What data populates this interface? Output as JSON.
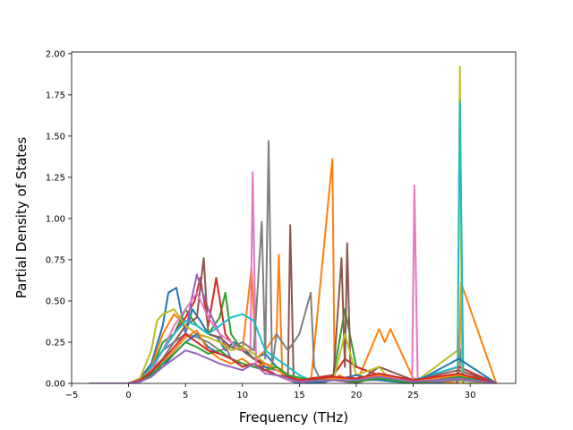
{
  "chart_data": {
    "type": "line",
    "title": "",
    "xlabel": "Frequency (THz)",
    "ylabel": "Partial Density of States",
    "xlim": [
      -5.0,
      34.0
    ],
    "ylim": [
      0.0,
      2.01
    ],
    "x_ticks": [
      -5,
      0,
      5,
      10,
      15,
      20,
      25,
      30
    ],
    "y_ticks": [
      0.0,
      0.25,
      0.5,
      0.75,
      1.0,
      1.25,
      1.5,
      1.75,
      2.0
    ],
    "x_tick_labels": [
      "−5",
      "0",
      "5",
      "10",
      "15",
      "20",
      "25",
      "30"
    ],
    "y_tick_labels": [
      "0.00",
      "0.25",
      "0.50",
      "0.75",
      "1.00",
      "1.25",
      "1.50",
      "1.75",
      "2.00"
    ],
    "grid": false,
    "legend": "none",
    "series": [
      {
        "color": "#1f77b4",
        "x": [
          -3.5,
          0,
          1,
          2,
          3,
          3.5,
          4.2,
          5,
          5.6,
          6.3,
          7,
          7.8,
          8.5,
          9.2,
          10,
          11,
          12,
          13,
          13.5,
          14,
          15,
          18,
          20,
          22,
          23,
          25,
          28.8,
          29.1,
          29.4,
          32.3
        ],
        "y": [
          0,
          0,
          0.03,
          0.12,
          0.35,
          0.55,
          0.58,
          0.3,
          0.45,
          0.38,
          0.3,
          0.28,
          0.2,
          0.25,
          0.22,
          0.15,
          0.18,
          0.1,
          0.08,
          0.02,
          0,
          0.02,
          0.01,
          0.05,
          0.03,
          0.01,
          0,
          0.21,
          0,
          0
        ]
      },
      {
        "color": "#ff7f0e",
        "x": [
          -3.5,
          0,
          1,
          2,
          3,
          4,
          5,
          6,
          7,
          8,
          9,
          10,
          10.8,
          11.2,
          12,
          13,
          13.2,
          13.5,
          14,
          16,
          17.9,
          18.1,
          18.5,
          20,
          22,
          22.5,
          23,
          25,
          29,
          29.2,
          32.3
        ],
        "y": [
          0,
          0,
          0.02,
          0.1,
          0.3,
          0.42,
          0.35,
          0.3,
          0.28,
          0.25,
          0.22,
          0.2,
          0.7,
          0.15,
          0.2,
          0.3,
          0.78,
          0.05,
          0.02,
          0,
          1.36,
          0.02,
          0.05,
          0,
          0.33,
          0.25,
          0.33,
          0.03,
          0,
          0.61,
          0
        ]
      },
      {
        "color": "#2ca02c",
        "x": [
          -3.5,
          0,
          1,
          2,
          3,
          4,
          5,
          6,
          7,
          8,
          8.5,
          9,
          10,
          11,
          12,
          13,
          14,
          15,
          18,
          19,
          20,
          22,
          25,
          29,
          32.3
        ],
        "y": [
          0,
          0,
          0.02,
          0.08,
          0.25,
          0.3,
          0.45,
          0.35,
          0.3,
          0.4,
          0.55,
          0.3,
          0.2,
          0.15,
          0.12,
          0.1,
          0.05,
          0.02,
          0.05,
          0.45,
          0.1,
          0.05,
          0.02,
          0.03,
          0
        ]
      },
      {
        "color": "#d62728",
        "x": [
          -3.5,
          0,
          1,
          2,
          3,
          4,
          5,
          5.8,
          6.3,
          7,
          7.7,
          8.5,
          9,
          10,
          11,
          12,
          13,
          14,
          15,
          18,
          19,
          20,
          22,
          25,
          29,
          32.3
        ],
        "y": [
          0,
          0,
          0.03,
          0.1,
          0.2,
          0.3,
          0.4,
          0.5,
          0.64,
          0.35,
          0.64,
          0.3,
          0.25,
          0.2,
          0.15,
          0.12,
          0.1,
          0.05,
          0.02,
          0.05,
          0.15,
          0.1,
          0.05,
          0.02,
          0.1,
          0
        ]
      },
      {
        "color": "#9467bd",
        "x": [
          -3.5,
          0,
          1,
          2,
          3,
          4,
          5,
          5.5,
          6,
          7,
          8,
          9,
          10,
          11,
          12,
          13,
          14,
          16,
          18,
          20,
          22,
          25,
          29,
          32.3
        ],
        "y": [
          0,
          0,
          0.02,
          0.1,
          0.2,
          0.25,
          0.3,
          0.5,
          0.66,
          0.45,
          0.3,
          0.15,
          0.12,
          0.1,
          0.08,
          0.1,
          0.05,
          0.02,
          0.03,
          0.02,
          0.02,
          0.01,
          0.05,
          0
        ]
      },
      {
        "color": "#8c564b",
        "x": [
          -3.5,
          0,
          1,
          2,
          3,
          4,
          5,
          6,
          6.6,
          7,
          8,
          9,
          10,
          11,
          12,
          13,
          14,
          14.2,
          14.5,
          16,
          18,
          18.7,
          19,
          19.2,
          19.5,
          20,
          22,
          25,
          29,
          32.3
        ],
        "y": [
          0,
          0,
          0.02,
          0.08,
          0.15,
          0.25,
          0.35,
          0.4,
          0.76,
          0.3,
          0.28,
          0.22,
          0.2,
          0.15,
          0.1,
          0.08,
          0.05,
          0.96,
          0.02,
          0,
          0.05,
          0.76,
          0.1,
          0.85,
          0.05,
          0,
          0.1,
          0.02,
          0.08,
          0
        ]
      },
      {
        "color": "#e377c2",
        "x": [
          -3.5,
          0,
          1,
          2,
          3,
          4,
          5,
          6,
          7,
          8,
          9,
          10,
          10.7,
          10.9,
          11.2,
          12,
          13,
          14,
          16,
          18,
          20,
          22,
          24.9,
          25.1,
          25.4,
          29,
          32.3
        ],
        "y": [
          0,
          0,
          0.02,
          0.08,
          0.2,
          0.35,
          0.45,
          0.55,
          0.4,
          0.3,
          0.25,
          0.2,
          0.2,
          1.28,
          0.1,
          0.1,
          0.05,
          0.02,
          0,
          0.02,
          0,
          0.05,
          0,
          1.2,
          0,
          0.05,
          0
        ]
      },
      {
        "color": "#7f7f7f",
        "x": [
          -3.5,
          0,
          1,
          2,
          3,
          4,
          5,
          6,
          7,
          8,
          9,
          10,
          11,
          11.7,
          12,
          12.3,
          12.6,
          13,
          14,
          15,
          16,
          16.3,
          17,
          18,
          20,
          22,
          25,
          29,
          32.3
        ],
        "y": [
          0,
          0,
          0.02,
          0.06,
          0.15,
          0.25,
          0.3,
          0.28,
          0.25,
          0.2,
          0.22,
          0.25,
          0.2,
          0.98,
          0.15,
          1.47,
          0.1,
          0.3,
          0.2,
          0.3,
          0.55,
          0.1,
          0,
          0.03,
          0,
          0.05,
          0,
          0.02,
          0
        ]
      },
      {
        "color": "#bcbd22",
        "x": [
          -3.5,
          0,
          1,
          2,
          2.5,
          3,
          4,
          5,
          6,
          7,
          8,
          9,
          10,
          11,
          12,
          13,
          14,
          16,
          18,
          19,
          20,
          22,
          23,
          25,
          28.9,
          29.1,
          29.3,
          32.3
        ],
        "y": [
          0,
          0,
          0.03,
          0.2,
          0.38,
          0.42,
          0.45,
          0.35,
          0.3,
          0.28,
          0.25,
          0.2,
          0.22,
          0.18,
          0.12,
          0.1,
          0.05,
          0,
          0.02,
          0.3,
          0.05,
          0.1,
          0.02,
          0,
          0.2,
          1.92,
          0,
          0
        ]
      },
      {
        "color": "#17becf",
        "x": [
          -3.5,
          0,
          1,
          2,
          3,
          4,
          5,
          6,
          7,
          8,
          9,
          10,
          11,
          12,
          13,
          14,
          15,
          16,
          18,
          20,
          22,
          25,
          28.9,
          29.1,
          29.4,
          32.3
        ],
        "y": [
          0,
          0,
          0.02,
          0.1,
          0.2,
          0.3,
          0.38,
          0.35,
          0.3,
          0.35,
          0.4,
          0.42,
          0.38,
          0.2,
          0.15,
          0.1,
          0.05,
          0.02,
          0.03,
          0.02,
          0.05,
          0.02,
          0.1,
          1.71,
          0.05,
          0
        ]
      },
      {
        "color": "#1f77b4",
        "x": [
          -3.5,
          0,
          1,
          2,
          3,
          4,
          5,
          6,
          7,
          8,
          9,
          10,
          11,
          12,
          13,
          14,
          15,
          16,
          18,
          20,
          22,
          25,
          29,
          32.3
        ],
        "y": [
          0,
          0,
          0.02,
          0.06,
          0.1,
          0.18,
          0.25,
          0.3,
          0.22,
          0.18,
          0.15,
          0.12,
          0.1,
          0.1,
          0.08,
          0.05,
          0.02,
          0,
          0.02,
          0.05,
          0.02,
          0,
          0.15,
          0
        ]
      },
      {
        "color": "#ff7f0e",
        "x": [
          -3.5,
          0,
          1,
          2,
          3,
          4,
          5,
          6,
          7,
          8,
          9,
          10,
          11,
          12,
          13,
          14,
          15,
          18,
          20,
          22,
          25,
          29,
          32.3
        ],
        "y": [
          0,
          0,
          0.02,
          0.08,
          0.12,
          0.2,
          0.28,
          0.32,
          0.2,
          0.15,
          0.12,
          0.15,
          0.1,
          0.12,
          0.08,
          0.05,
          0.02,
          0.03,
          0.02,
          0.05,
          0.01,
          0.05,
          0
        ]
      },
      {
        "color": "#2ca02c",
        "x": [
          -3.5,
          0,
          1,
          2,
          3,
          4,
          5,
          6,
          7,
          8,
          9,
          10,
          11,
          12,
          13,
          14,
          16,
          18,
          20,
          22,
          25,
          29,
          32.3
        ],
        "y": [
          0,
          0,
          0.01,
          0.05,
          0.12,
          0.18,
          0.25,
          0.22,
          0.18,
          0.2,
          0.15,
          0.12,
          0.1,
          0.08,
          0.1,
          0.05,
          0.02,
          0.02,
          0.01,
          0.03,
          0,
          0.04,
          0
        ]
      },
      {
        "color": "#d62728",
        "x": [
          -3.5,
          0,
          1,
          2,
          3,
          4,
          5,
          6,
          7,
          8,
          9,
          10,
          11,
          12,
          13,
          14,
          15,
          18,
          20,
          22,
          25,
          29,
          32.3
        ],
        "y": [
          0,
          0,
          0.02,
          0.07,
          0.14,
          0.22,
          0.3,
          0.25,
          0.2,
          0.18,
          0.15,
          0.1,
          0.12,
          0.08,
          0.05,
          0.04,
          0.02,
          0.04,
          0.03,
          0.06,
          0.02,
          0.06,
          0
        ]
      },
      {
        "color": "#9467bd",
        "x": [
          -3.5,
          0,
          1,
          2,
          3,
          4,
          5,
          6,
          7,
          8,
          9,
          10,
          11,
          12,
          13,
          14,
          15,
          18,
          20,
          22,
          25,
          29,
          32.3
        ],
        "y": [
          0,
          0,
          0.01,
          0.04,
          0.1,
          0.15,
          0.2,
          0.18,
          0.15,
          0.12,
          0.1,
          0.08,
          0.12,
          0.06,
          0.05,
          0.03,
          0.01,
          0.02,
          0.02,
          0.04,
          0.01,
          0.03,
          0
        ]
      }
    ]
  }
}
